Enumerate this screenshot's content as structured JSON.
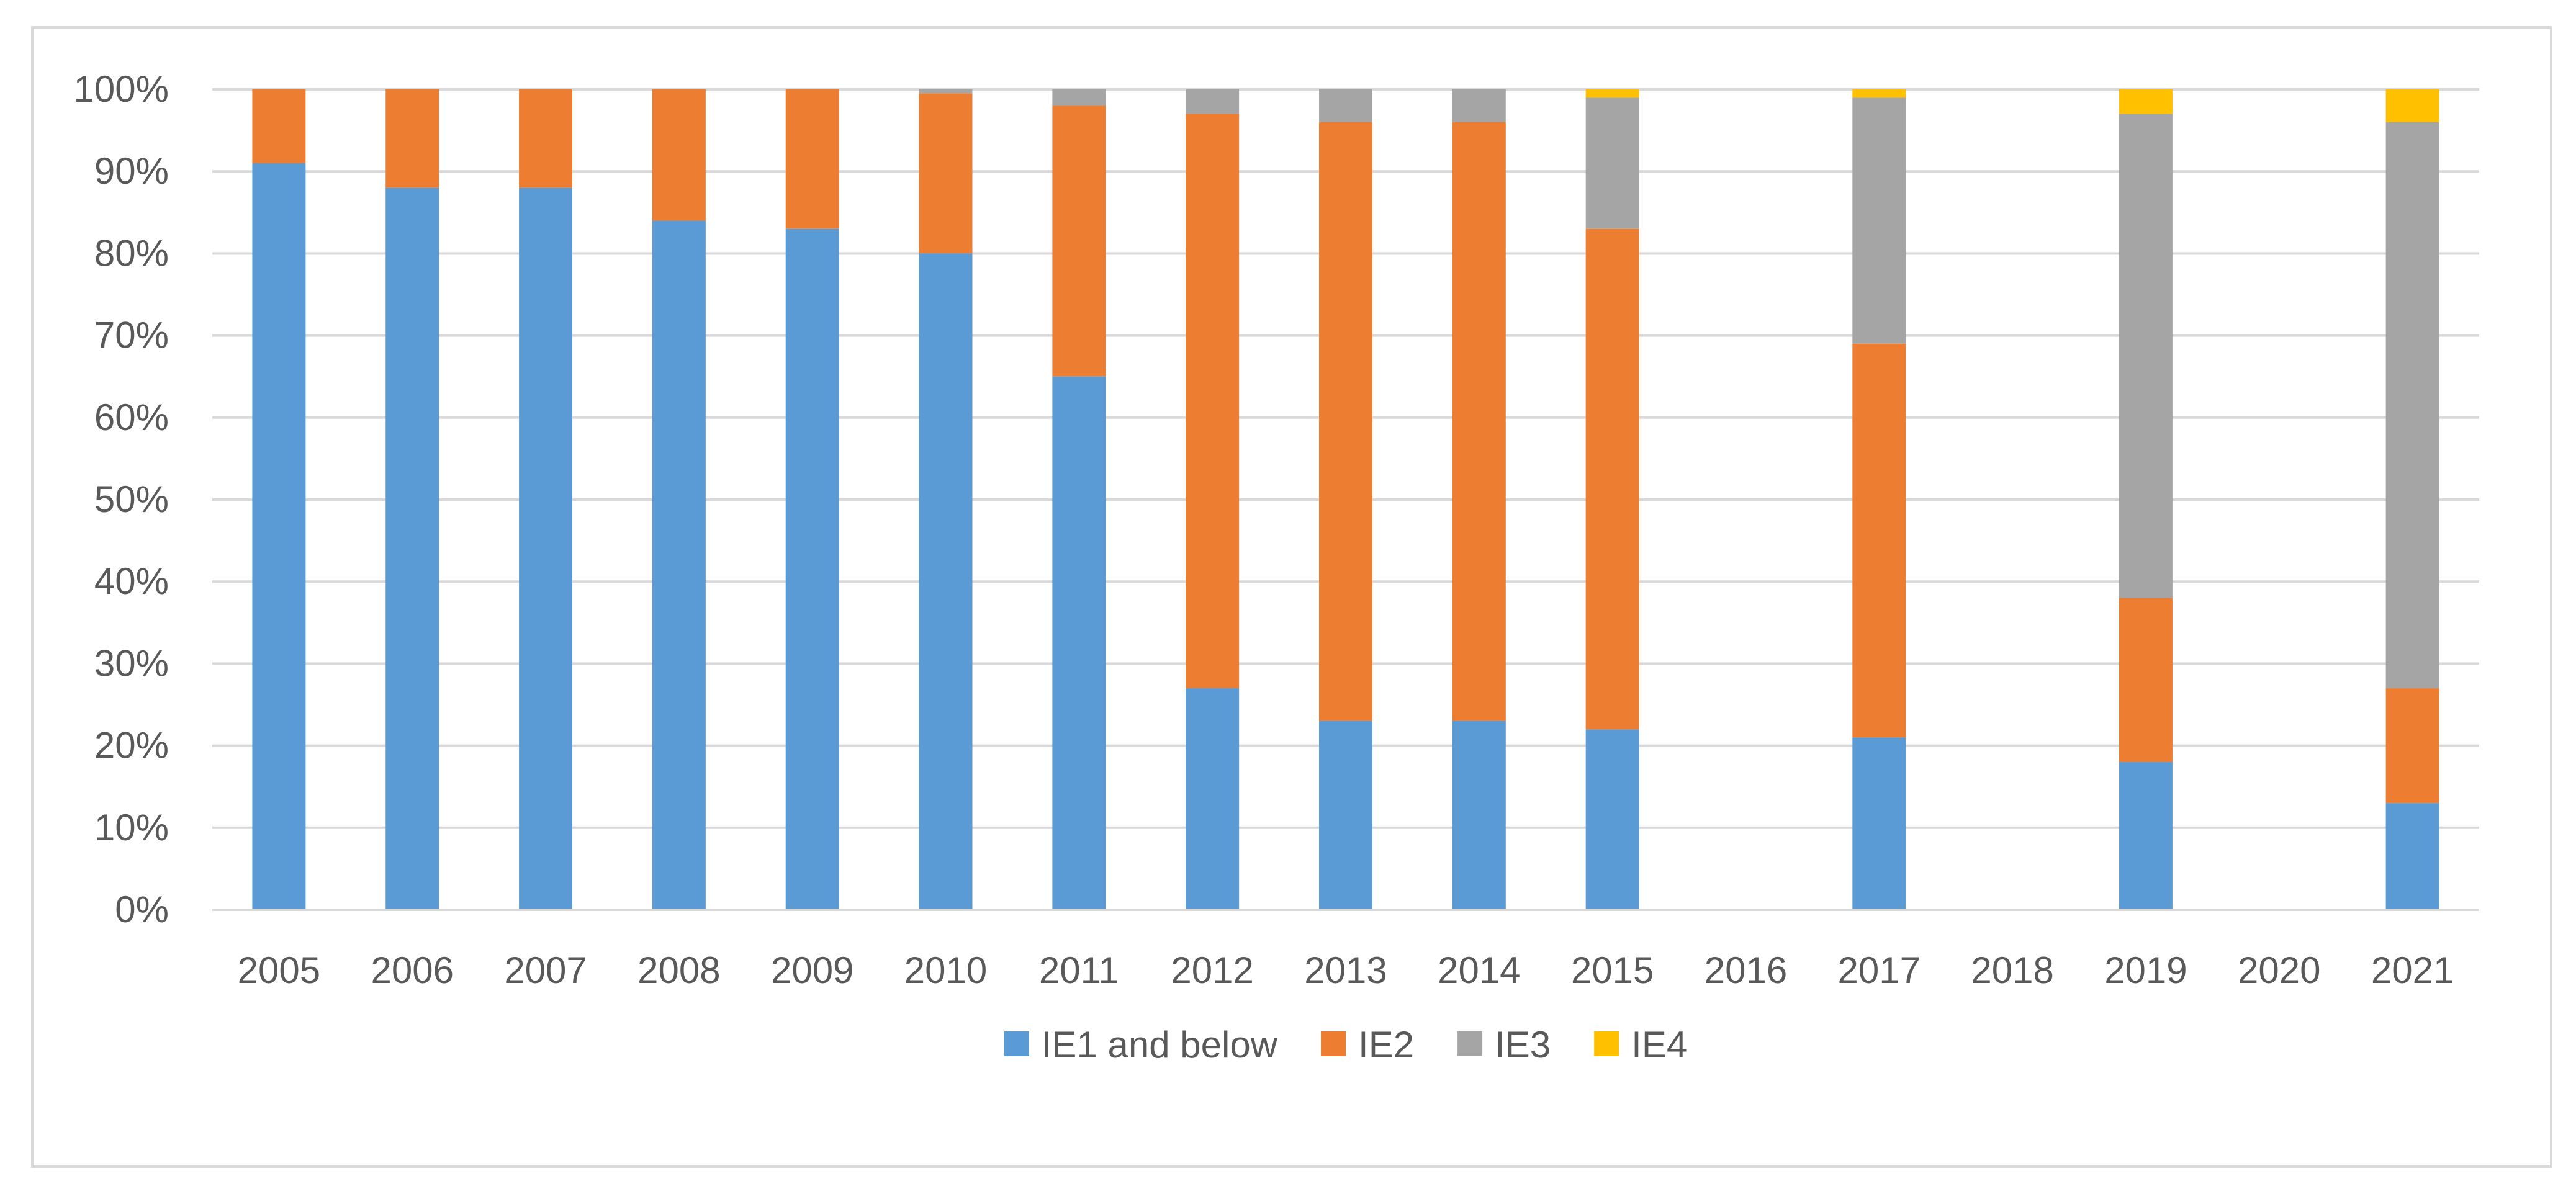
{
  "chart_data": {
    "type": "bar",
    "stacked": true,
    "percent_axis": true,
    "categories": [
      "2005",
      "2006",
      "2007",
      "2008",
      "2009",
      "2010",
      "2011",
      "2012",
      "2013",
      "2014",
      "2015",
      "2016",
      "2017",
      "2018",
      "2019",
      "2020",
      "2021"
    ],
    "series": [
      {
        "name": "IE1 and below",
        "color": "#5b9bd5",
        "values": [
          91,
          88,
          88,
          84,
          83,
          80,
          65,
          27,
          23,
          23,
          22,
          null,
          21,
          null,
          18,
          null,
          13
        ]
      },
      {
        "name": "IE2",
        "color": "#ed7d31",
        "values": [
          9,
          12,
          12,
          16,
          17,
          19.5,
          33,
          70,
          73,
          73,
          61,
          null,
          48,
          null,
          20,
          null,
          14
        ]
      },
      {
        "name": "IE3",
        "color": "#a5a5a5",
        "values": [
          0,
          0,
          0,
          0,
          0,
          0.5,
          2,
          3,
          4,
          4,
          16,
          null,
          30,
          null,
          59,
          null,
          69
        ]
      },
      {
        "name": "IE4",
        "color": "#ffc000",
        "values": [
          0,
          0,
          0,
          0,
          0,
          0,
          0,
          0,
          0,
          0,
          1,
          null,
          1,
          null,
          3,
          null,
          4
        ]
      }
    ],
    "ylim": [
      0,
      100
    ],
    "yticks": [
      "0%",
      "10%",
      "20%",
      "30%",
      "40%",
      "50%",
      "60%",
      "70%",
      "80%",
      "90%",
      "100%"
    ],
    "grid": true,
    "legend_position": "bottom"
  }
}
